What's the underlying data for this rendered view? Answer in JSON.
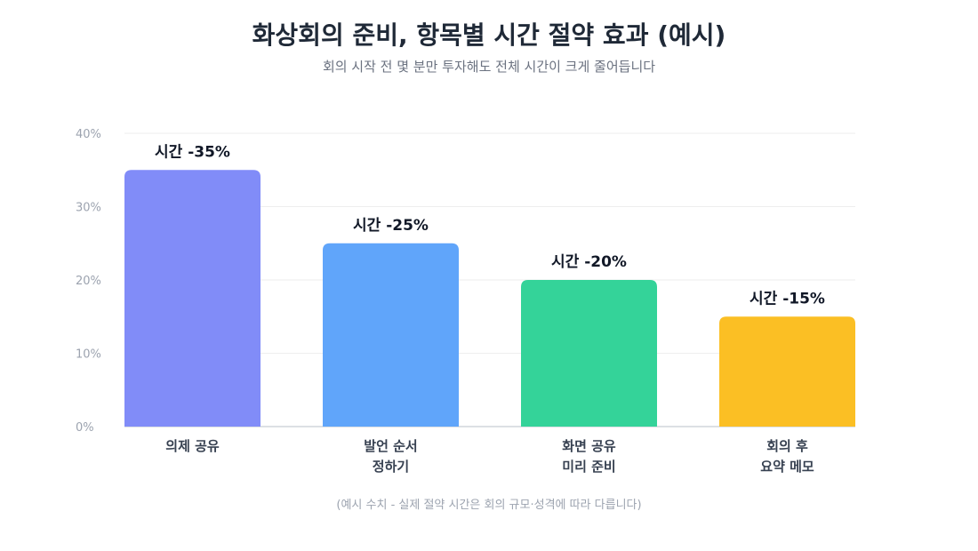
{
  "header": {
    "title": "화상회의 준비, 항목별 시간 절약 효과 (예시)",
    "subtitle": "회의 시작 전 몇 분만 투자해도 전체 시간이 크게 줄어듭니다"
  },
  "footer": {
    "note": "(예시 수치 - 실제 절약 시간은 회의 규모·성격에 따라 다릅니다)"
  },
  "chart_data": {
    "type": "bar",
    "categories": [
      [
        "의제 공유"
      ],
      [
        "발언 순서",
        "정하기"
      ],
      [
        "화면 공유",
        "미리 준비"
      ],
      [
        "회의 후",
        "요약 메모"
      ]
    ],
    "values": [
      35,
      25,
      20,
      15
    ],
    "data_labels": [
      "시간 -35%",
      "시간 -25%",
      "시간 -20%",
      "시간 -15%"
    ],
    "colors": [
      "#818cf8",
      "#60a5fa",
      "#34d399",
      "#fbbf24"
    ],
    "ylim": [
      0,
      40
    ],
    "yticks": [
      0,
      10,
      20,
      30,
      40
    ],
    "ytick_labels": [
      "0%",
      "10%",
      "20%",
      "30%",
      "40%"
    ],
    "grid": true,
    "legend": "none",
    "xlabel": "",
    "ylabel": ""
  }
}
